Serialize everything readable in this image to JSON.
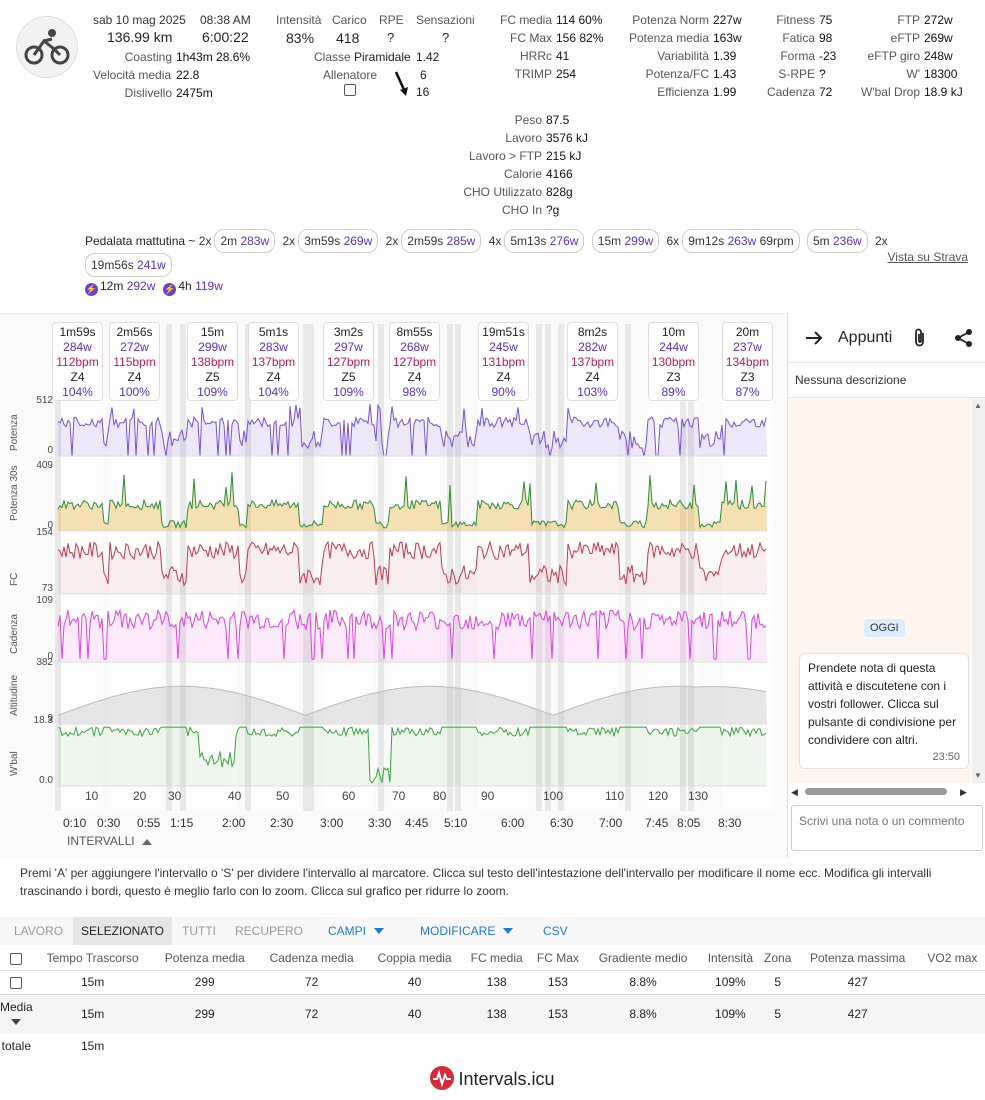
{
  "header": {
    "date": "sab 10 mag 2025",
    "time": "08:38 AM",
    "distance": "136.99 km",
    "duration": "6:00:22",
    "coasting_label": "Coasting",
    "coasting_value": "1h43m 28.6%",
    "speed_label": "Velocità media",
    "speed_value": "22.8",
    "climb_label": "Dislivello",
    "climb_value": "2475m",
    "intensity_label": "Intensità",
    "intensity_value": "83%",
    "load_label": "Carico",
    "load_value": "418",
    "rpe_label": "RPE",
    "rpe_value": "?",
    "feel_label": "Sensazioni",
    "feel_value": "?",
    "class_label": "Classe",
    "class_value": "Piramidale",
    "class_num": "1.42",
    "coach_label": "Allenatore",
    "coach_a": "6",
    "coach_b": "16"
  },
  "stats_col1": [
    {
      "l": "FC media",
      "v": "114 60%"
    },
    {
      "l": "FC Max",
      "v": "156 82%"
    },
    {
      "l": "HRRc",
      "v": "41"
    },
    {
      "l": "TRIMP",
      "v": "254"
    }
  ],
  "stats_col2": [
    {
      "l": "Potenza Norm",
      "v": "227w"
    },
    {
      "l": "Potenza media",
      "v": "163w"
    },
    {
      "l": "Variabilità",
      "v": "1.39"
    },
    {
      "l": "Potenza/FC",
      "v": "1.43"
    },
    {
      "l": "Efficienza",
      "v": "1.99"
    }
  ],
  "stats_col3": [
    {
      "l": "Fitness",
      "v": "75"
    },
    {
      "l": "Fatica",
      "v": "98"
    },
    {
      "l": "Forma",
      "v": "-23"
    },
    {
      "l": "S-RPE",
      "v": "?"
    },
    {
      "l": "Cadenza",
      "v": "72"
    }
  ],
  "stats_col4": [
    {
      "l": "FTP",
      "v": "272w"
    },
    {
      "l": "eFTP",
      "v": "269w"
    },
    {
      "l": "eFTP giro",
      "v": "248w"
    },
    {
      "l": "W'",
      "v": "18300"
    },
    {
      "l": "W'bal Drop",
      "v": "18.9 kJ"
    }
  ],
  "stats_mid": [
    {
      "l": "Peso",
      "v": "87.5"
    },
    {
      "l": "Lavoro",
      "v": "3576 kJ"
    },
    {
      "l": "Lavoro > FTP",
      "v": "215 kJ"
    },
    {
      "l": "Calorie",
      "v": "4166"
    },
    {
      "l": "CHO Utilizzato",
      "v": "828g"
    },
    {
      "l": "CHO In",
      "v": "?g"
    }
  ],
  "activity_name": "Pedalata mattutina ~",
  "lap_groups": [
    {
      "mult": "2x",
      "chips": [
        {
          "d": "2m",
          "w": "283w"
        }
      ]
    },
    {
      "mult": "2x",
      "chips": [
        {
          "d": "3m59s",
          "w": "269w"
        }
      ]
    },
    {
      "mult": "2x",
      "chips": [
        {
          "d": "2m59s",
          "w": "285w"
        }
      ]
    },
    {
      "mult": "4x",
      "chips": [
        {
          "d": "5m13s",
          "w": "276w"
        }
      ]
    },
    {
      "mult": "",
      "chips": [
        {
          "d": "15m",
          "w": "299w"
        }
      ]
    },
    {
      "mult": "6x",
      "chips": [
        {
          "d": "9m12s",
          "w": "263w",
          "x": "69rpm"
        }
      ]
    },
    {
      "mult": "",
      "chips": [
        {
          "d": "5m",
          "w": "236w"
        }
      ]
    },
    {
      "mult": "2x",
      "chips": [
        {
          "d": "19m56s",
          "w": "241w"
        }
      ]
    }
  ],
  "strava_link": "Vista su Strava",
  "peaks": [
    {
      "d": "12m",
      "w": "292w"
    },
    {
      "d": "4h",
      "w": "119w"
    }
  ],
  "intervals": [
    {
      "t": "1m59s",
      "w": "284w",
      "b": "112bpm",
      "z": "Z4",
      "p": "104%",
      "x": 52
    },
    {
      "t": "2m56s",
      "w": "272w",
      "b": "115bpm",
      "z": "Z4",
      "p": "100%",
      "x": 109
    },
    {
      "t": "15m",
      "w": "299w",
      "b": "138bpm",
      "z": "Z5",
      "p": "109%",
      "x": 187
    },
    {
      "t": "5m1s",
      "w": "283w",
      "b": "137bpm",
      "z": "Z4",
      "p": "104%",
      "x": 248
    },
    {
      "t": "3m2s",
      "w": "297w",
      "b": "127bpm",
      "z": "Z5",
      "p": "109%",
      "x": 323
    },
    {
      "t": "8m55s",
      "w": "268w",
      "b": "127bpm",
      "z": "Z4",
      "p": "98%",
      "x": 389
    },
    {
      "t": "19m51s",
      "w": "245w",
      "b": "131bpm",
      "z": "Z4",
      "p": "90%",
      "x": 478
    },
    {
      "t": "8m2s",
      "w": "282w",
      "b": "137bpm",
      "z": "Z4",
      "p": "103%",
      "x": 567
    },
    {
      "t": "10m",
      "w": "244w",
      "b": "130bpm",
      "z": "Z3",
      "p": "89%",
      "x": 648
    },
    {
      "t": "20m",
      "w": "237w",
      "b": "134bpm",
      "z": "Z3",
      "p": "87%",
      "x": 722
    }
  ],
  "charts": {
    "power": {
      "label": "Potenza",
      "max": "512",
      "min": "0"
    },
    "power30": {
      "label": "Potenza 30s",
      "max": "409",
      "min": "0"
    },
    "hr": {
      "label": "FC",
      "max": "154",
      "min": "73"
    },
    "cad": {
      "label": "Cadenza",
      "max": "109",
      "min": "0"
    },
    "alt": {
      "label": "Altitudine",
      "max": "382",
      "min": "9"
    },
    "wbal": {
      "label": "W'bal",
      "max": "18.3",
      "min": "0.0"
    }
  },
  "lap_numbers": [
    "10",
    "20",
    "30",
    "40",
    "50",
    "60",
    "70",
    "80",
    "90",
    "100",
    "110",
    "120",
    "130"
  ],
  "time_ticks": [
    "0:10",
    "0:30",
    "0:55",
    "1:15",
    "2:00",
    "2:30",
    "3:00",
    "3:30",
    "4:45",
    "5:10",
    "6:00",
    "6:30",
    "7:00",
    "7:45",
    "8:05",
    "8:30"
  ],
  "intervals_toggle": "INTERVALLI",
  "notes": {
    "title": "Appunti",
    "empty": "Nessuna descrizione",
    "today": "OGGI",
    "message": "Prendete nota di questa attività e discutetene con i vostri follower. Clicca sul pulsante di condivisione per condividere con altri.",
    "msg_time": "23:50",
    "placeholder": "Scrivi una nota o un commento"
  },
  "help": "Premi 'A' per aggiungere l'intervallo o 'S' per dividere l'intervallo al marcatore. Clicca sul testo dell'intestazione dell'intervallo per modificare il nome ecc. Modifica gli intervalli trascinando i bordi, questo è meglio farlo con lo zoom. Clicca sul grafico per ridurre lo zoom.",
  "tabs": [
    "LAVORO",
    "SELEZIONATO",
    "TUTTI",
    "RECUPERO",
    "CAMPI",
    "MODIFICARE",
    "CSV"
  ],
  "table": {
    "headers": [
      "Tempo Trascorso",
      "Potenza media",
      "Cadenza media",
      "Coppia media",
      "FC media",
      "FC Max",
      "Gradiente medio",
      "Intensità",
      "Zona",
      "Potenza massima",
      "VO2 max"
    ],
    "row": [
      "15m",
      "299",
      "72",
      "40",
      "138",
      "153",
      "8.8%",
      "109%",
      "5",
      "427",
      ""
    ],
    "avg_label": "Media",
    "avg": [
      "15m",
      "299",
      "72",
      "40",
      "138",
      "153",
      "8.8%",
      "109%",
      "5",
      "427",
      ""
    ],
    "total_label": "totale",
    "total": "15m"
  },
  "footer": "Intervals.icu"
}
